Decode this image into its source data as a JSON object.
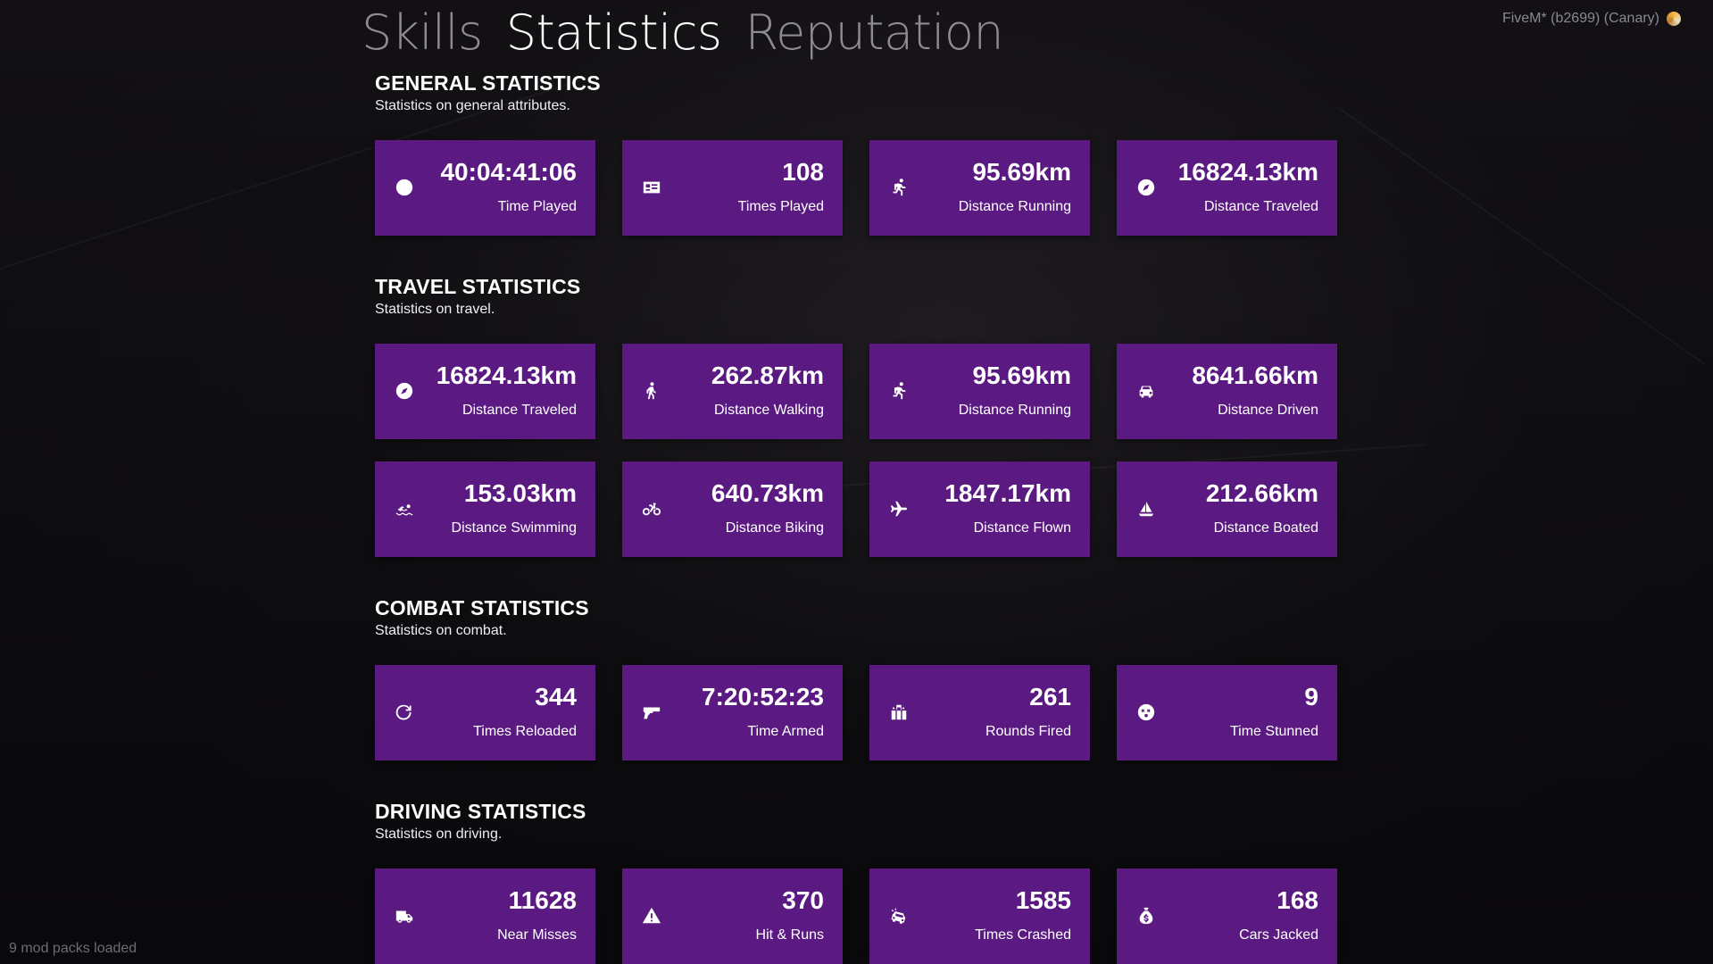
{
  "tabs": [
    {
      "label": "Skills"
    },
    {
      "label": "Statistics"
    },
    {
      "label": "Reputation"
    }
  ],
  "build_label": "FiveM* (b2699) (Canary)",
  "footer_status": "9 mod packs loaded",
  "sections": [
    {
      "title": "GENERAL STATISTICS",
      "subtitle": "Statistics on general attributes.",
      "cards": [
        {
          "icon": "clock-icon",
          "value": "40:04:41:06",
          "label": "Time Played"
        },
        {
          "icon": "id-card-icon",
          "value": "108",
          "label": "Times Played"
        },
        {
          "icon": "running-icon",
          "value": "95.69km",
          "label": "Distance Running"
        },
        {
          "icon": "compass-icon",
          "value": "16824.13km",
          "label": "Distance Traveled"
        }
      ]
    },
    {
      "title": "TRAVEL STATISTICS",
      "subtitle": "Statistics on travel.",
      "cards": [
        {
          "icon": "compass-icon",
          "value": "16824.13km",
          "label": "Distance Traveled"
        },
        {
          "icon": "walking-icon",
          "value": "262.87km",
          "label": "Distance Walking"
        },
        {
          "icon": "running-icon",
          "value": "95.69km",
          "label": "Distance Running"
        },
        {
          "icon": "car-icon",
          "value": "8641.66km",
          "label": "Distance Driven"
        },
        {
          "icon": "swimmer-icon",
          "value": "153.03km",
          "label": "Distance Swimming"
        },
        {
          "icon": "bicycle-icon",
          "value": "640.73km",
          "label": "Distance Biking"
        },
        {
          "icon": "plane-icon",
          "value": "1847.17km",
          "label": "Distance Flown"
        },
        {
          "icon": "sailboat-icon",
          "value": "212.66km",
          "label": "Distance Boated"
        }
      ]
    },
    {
      "title": "COMBAT STATISTICS",
      "subtitle": "Statistics on combat.",
      "cards": [
        {
          "icon": "reload-icon",
          "value": "344",
          "label": "Times Reloaded"
        },
        {
          "icon": "gun-icon",
          "value": "7:20:52:23",
          "label": "Time Armed"
        },
        {
          "icon": "ammo-icon",
          "value": "261",
          "label": "Rounds Fired"
        },
        {
          "icon": "dizzy-icon",
          "value": "9",
          "label": "Time Stunned"
        }
      ]
    },
    {
      "title": "DRIVING STATISTICS",
      "subtitle": "Statistics on driving.",
      "cards": [
        {
          "icon": "truck-icon",
          "value": "11628",
          "label": "Near Misses"
        },
        {
          "icon": "warning-icon",
          "value": "370",
          "label": "Hit & Runs"
        },
        {
          "icon": "car-crash-icon",
          "value": "1585",
          "label": "Times Crashed"
        },
        {
          "icon": "money-bag-icon",
          "value": "168",
          "label": "Cars Jacked"
        }
      ]
    }
  ]
}
